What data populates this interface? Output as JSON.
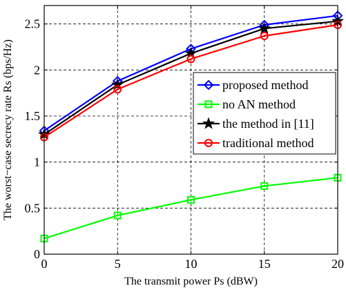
{
  "chart_data": {
    "type": "line",
    "xlabel": "The transmit power Ps (dBW)",
    "ylabel": "The worst−case secrecy rate Rs (bps/Hz)",
    "xlim": [
      0,
      20
    ],
    "ylim": [
      0,
      2.7
    ],
    "xticks": [
      0,
      5,
      10,
      15,
      20
    ],
    "xtick_labels": [
      "0",
      "5",
      "10",
      "15",
      "20"
    ],
    "yticks": [
      0,
      0.5,
      1,
      1.5,
      2,
      2.5
    ],
    "ytick_labels": [
      "0",
      "0.5",
      "1",
      "1.5",
      "2",
      "2.5"
    ],
    "grid": true,
    "legend_position": "center-right",
    "x": [
      0,
      5,
      10,
      15,
      20
    ],
    "series": [
      {
        "name": "proposed method",
        "values": [
          1.34,
          1.88,
          2.23,
          2.49,
          2.59
        ],
        "color": "#0000ff",
        "marker": "diamond"
      },
      {
        "name": "no AN method",
        "values": [
          0.17,
          0.42,
          0.59,
          0.74,
          0.83
        ],
        "color": "#00ff00",
        "marker": "square"
      },
      {
        "name": "the method in [11]",
        "values": [
          1.3,
          1.84,
          2.18,
          2.45,
          2.53
        ],
        "color": "#000000",
        "marker": "star"
      },
      {
        "name": "traditional method",
        "values": [
          1.27,
          1.79,
          2.12,
          2.37,
          2.49
        ],
        "color": "#ff0000",
        "marker": "circle"
      }
    ]
  }
}
